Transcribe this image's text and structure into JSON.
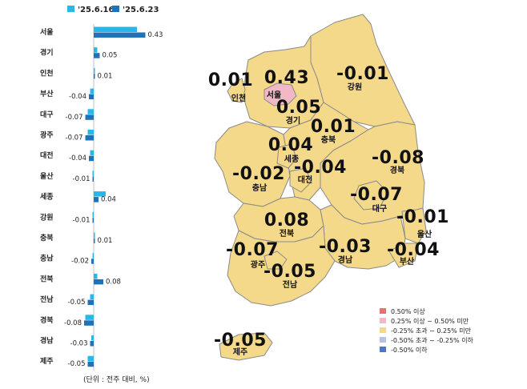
{
  "chart_data": [
    {
      "type": "bar",
      "orientation": "horizontal",
      "legend_placement": "top",
      "categories": [
        "서울",
        "경기",
        "인천",
        "부산",
        "대구",
        "광주",
        "대전",
        "울산",
        "세종",
        "강원",
        "충북",
        "충남",
        "전북",
        "전남",
        "경북",
        "경남",
        "제주"
      ],
      "series": [
        {
          "name": "'25.6.16",
          "color": "#29b6e8",
          "values": [
            0.36,
            0.03,
            0.01,
            -0.03,
            -0.05,
            -0.05,
            -0.03,
            -0.01,
            0.1,
            -0.01,
            0.01,
            -0.01,
            0.03,
            -0.03,
            -0.07,
            -0.02,
            -0.05
          ]
        },
        {
          "name": "'25.6.23",
          "color": "#1f72b8",
          "values": [
            0.43,
            0.05,
            0.01,
            -0.04,
            -0.07,
            -0.07,
            -0.04,
            -0.01,
            0.04,
            -0.01,
            0.01,
            -0.02,
            0.08,
            -0.05,
            -0.08,
            -0.03,
            -0.05
          ]
        }
      ],
      "value_labels": [
        "0.43",
        "0.05",
        "0.01",
        "-0.04",
        "-0.07",
        "-0.07",
        "-0.04",
        "-0.01",
        "0.04",
        "-0.01",
        "0.01",
        "-0.02",
        "0.08",
        "-0.05",
        "-0.08",
        "-0.03",
        "-0.05"
      ],
      "value_axis_range": [
        -0.1,
        0.5
      ],
      "grid": false,
      "note": "(단위 : 전주 대비, %)"
    },
    {
      "type": "choropleth-map",
      "regions": [
        {
          "id": "seoul",
          "name": "서울",
          "value": "0.43",
          "bin": 1
        },
        {
          "id": "incheon",
          "name": "인천",
          "value": "0.01",
          "bin": 2
        },
        {
          "id": "gyeonggi",
          "name": "경기",
          "value": "0.05",
          "bin": 2
        },
        {
          "id": "gangwon",
          "name": "강원",
          "value": "-0.01",
          "bin": 2
        },
        {
          "id": "chungbuk",
          "name": "충북",
          "value": "0.01",
          "bin": 2
        },
        {
          "id": "sejong",
          "name": "세종",
          "value": "0.04",
          "bin": 2
        },
        {
          "id": "daejeon",
          "name": "대전",
          "value": "-0.04",
          "bin": 2
        },
        {
          "id": "chungnam",
          "name": "충남",
          "value": "-0.02",
          "bin": 2
        },
        {
          "id": "gyeongbuk",
          "name": "경북",
          "value": "-0.08",
          "bin": 2
        },
        {
          "id": "daegu",
          "name": "대구",
          "value": "-0.07",
          "bin": 2
        },
        {
          "id": "ulsan",
          "name": "울산",
          "value": "-0.01",
          "bin": 2
        },
        {
          "id": "jeonbuk",
          "name": "전북",
          "value": "0.08",
          "bin": 2
        },
        {
          "id": "gyeongnam",
          "name": "경남",
          "value": "-0.03",
          "bin": 2
        },
        {
          "id": "busan",
          "name": "부산",
          "value": "-0.04",
          "bin": 2
        },
        {
          "id": "gwangju",
          "name": "광주",
          "value": "-0.07",
          "bin": 2
        },
        {
          "id": "jeonnam",
          "name": "전남",
          "value": "-0.05",
          "bin": 2
        },
        {
          "id": "jeju",
          "name": "제주",
          "value": "-0.05",
          "bin": 2
        }
      ],
      "legend": [
        {
          "label": "0.50% 이상",
          "color": "#e57373"
        },
        {
          "label": "0.25% 이상 ~ 0.50% 미만",
          "color": "#f2b8c6"
        },
        {
          "label": "-0.25% 초과 ~ 0.25% 미만",
          "color": "#f5d98a"
        },
        {
          "label": "-0.50% 초과 ~ -0.25% 이하",
          "color": "#b7c3e3"
        },
        {
          "label": "-0.50% 이하",
          "color": "#4a78c9"
        }
      ],
      "legend_placement": "bottom-right"
    }
  ]
}
